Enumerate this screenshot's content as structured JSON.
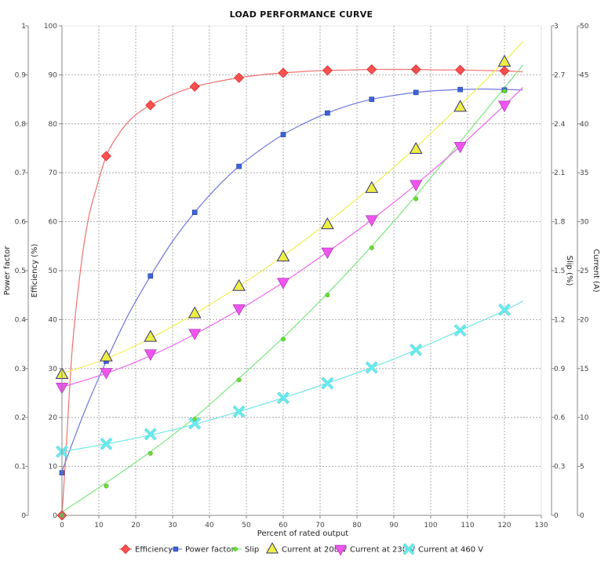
{
  "chart_data": {
    "type": "line",
    "title": "LOAD PERFORMANCE CURVE",
    "xlabel": "Percent of rated output",
    "xlim": [
      0,
      130
    ],
    "xticks": [
      0,
      10,
      20,
      30,
      40,
      50,
      60,
      70,
      80,
      90,
      100,
      110,
      120,
      130
    ],
    "grid": true,
    "legend_position": "bottom",
    "axes": {
      "pf": {
        "label": "Power factor",
        "range": [
          0,
          1
        ],
        "ticks": [
          "0",
          "0.1",
          "0.2",
          "0.3",
          "0.4",
          "0.5",
          "0.6",
          "0.7",
          "0.8",
          "0.9",
          "1"
        ]
      },
      "eff": {
        "label": "Efficiency (%)",
        "range": [
          0,
          100
        ],
        "ticks": [
          "0",
          "10",
          "20",
          "30",
          "40",
          "50",
          "60",
          "70",
          "80",
          "90",
          "100"
        ]
      },
      "slip": {
        "label": "Slip (%)",
        "range": [
          0,
          3
        ],
        "ticks": [
          "0",
          "0.3",
          "0.6",
          "0.9",
          "1.2",
          "1.5",
          "1.8",
          "2.1",
          "2.4",
          "2.7",
          "3"
        ]
      },
      "cur": {
        "label": "Current (A)",
        "range": [
          0,
          50
        ],
        "ticks": [
          "0",
          "5",
          "10",
          "15",
          "20",
          "25",
          "30",
          "35",
          "40",
          "45",
          "50"
        ]
      }
    },
    "series": [
      {
        "name": "Efficiency",
        "axis": "eff",
        "color": "#ff5050",
        "line_color": "#f27070",
        "marker": "diamond",
        "x": [
          0,
          12,
          24,
          36,
          48,
          60,
          72,
          84,
          96,
          108,
          120
        ],
        "y": [
          0,
          73.4,
          83.8,
          87.6,
          89.4,
          90.4,
          90.9,
          91.1,
          91.1,
          91.0,
          90.8
        ],
        "curve_x": [
          0,
          1,
          2,
          3,
          5,
          7,
          9,
          12,
          15,
          18,
          21,
          24,
          30,
          36,
          42,
          48,
          54,
          60,
          66,
          72,
          78,
          84,
          90,
          96,
          102,
          108,
          114,
          120,
          125
        ],
        "curve_y": [
          0,
          12,
          25,
          36,
          50,
          60,
          66,
          73.4,
          77.5,
          80.4,
          82.4,
          83.8,
          86,
          87.6,
          88.6,
          89.4,
          90,
          90.4,
          90.7,
          90.9,
          91,
          91.1,
          91.1,
          91.1,
          91,
          91,
          90.9,
          90.8,
          90.6
        ]
      },
      {
        "name": "Power factor",
        "axis": "pf",
        "color": "#3c64dc",
        "line_color": "#6f76e0",
        "marker": "square",
        "x": [
          0,
          12,
          24,
          36,
          48,
          60,
          72,
          84,
          96,
          108,
          120
        ],
        "y": [
          0.087,
          0.315,
          0.489,
          0.619,
          0.713,
          0.778,
          0.822,
          0.85,
          0.864,
          0.87,
          0.869
        ],
        "curve_x": [
          0,
          6,
          12,
          18,
          24,
          30,
          36,
          42,
          48,
          54,
          60,
          66,
          72,
          78,
          84,
          90,
          96,
          102,
          108,
          114,
          120,
          125
        ],
        "curve_y": [
          0.09,
          0.21,
          0.315,
          0.41,
          0.489,
          0.56,
          0.619,
          0.67,
          0.713,
          0.748,
          0.778,
          0.802,
          0.822,
          0.838,
          0.85,
          0.858,
          0.864,
          0.868,
          0.87,
          0.871,
          0.87,
          0.869
        ]
      },
      {
        "name": "Slip",
        "axis": "slip",
        "color": "#66dd33",
        "line_color": "#7de87d",
        "marker": "circle",
        "x": [
          0,
          12,
          24,
          36,
          48,
          60,
          72,
          84,
          96,
          108,
          120
        ],
        "y": [
          0,
          0.18,
          0.38,
          0.59,
          0.83,
          1.08,
          1.35,
          1.64,
          1.94,
          2.26,
          2.6
        ],
        "curve_x": [
          0,
          12,
          24,
          36,
          48,
          60,
          72,
          84,
          96,
          108,
          120,
          125
        ],
        "curve_y": [
          0.02,
          0.2,
          0.39,
          0.6,
          0.84,
          1.09,
          1.36,
          1.65,
          1.96,
          2.29,
          2.62,
          2.76
        ]
      },
      {
        "name": "Current at 208 V",
        "axis": "cur",
        "color": "#eeee44",
        "line_color": "#f0f050",
        "marker": "triangle-up",
        "x": [
          0,
          12,
          24,
          36,
          48,
          60,
          72,
          84,
          96,
          108,
          120
        ],
        "y": [
          14.4,
          16.2,
          18.2,
          20.6,
          23.4,
          26.4,
          29.7,
          33.4,
          37.4,
          41.7,
          46.3
        ],
        "curve_x": [
          0,
          12,
          24,
          36,
          48,
          60,
          72,
          84,
          96,
          108,
          120,
          125
        ],
        "curve_y": [
          14.5,
          16,
          18.1,
          20.6,
          23.4,
          26.5,
          29.9,
          33.6,
          37.6,
          41.9,
          46.4,
          48.4
        ]
      },
      {
        "name": "Current at 230 V",
        "axis": "cur",
        "color": "#ee55ee",
        "line_color": "#ee66ee",
        "marker": "triangle-down",
        "x": [
          0,
          12,
          24,
          36,
          48,
          60,
          72,
          84,
          96,
          108,
          120
        ],
        "y": [
          13.1,
          14.6,
          16.5,
          18.6,
          21.1,
          23.8,
          26.9,
          30.2,
          33.8,
          37.7,
          41.9
        ],
        "curve_x": [
          0,
          12,
          24,
          36,
          48,
          60,
          72,
          84,
          96,
          108,
          120,
          125
        ],
        "curve_y": [
          13.1,
          14.5,
          16.3,
          18.5,
          21,
          23.8,
          26.9,
          30.2,
          33.8,
          37.7,
          41.9,
          43.7
        ]
      },
      {
        "name": "Current at 460 V",
        "axis": "cur",
        "color": "#66eeee",
        "line_color": "#70e6e6",
        "marker": "x",
        "x": [
          0,
          12,
          24,
          36,
          48,
          60,
          72,
          84,
          96,
          108,
          120
        ],
        "y": [
          6.5,
          7.3,
          8.3,
          9.4,
          10.6,
          12.0,
          13.5,
          15.1,
          16.9,
          18.9,
          21.0
        ],
        "curve_x": [
          0,
          12,
          24,
          36,
          48,
          60,
          72,
          84,
          96,
          108,
          120,
          125
        ],
        "curve_y": [
          6.5,
          7.3,
          8.2,
          9.3,
          10.6,
          12,
          13.5,
          15.1,
          16.9,
          18.9,
          20.9,
          21.9
        ]
      }
    ]
  }
}
